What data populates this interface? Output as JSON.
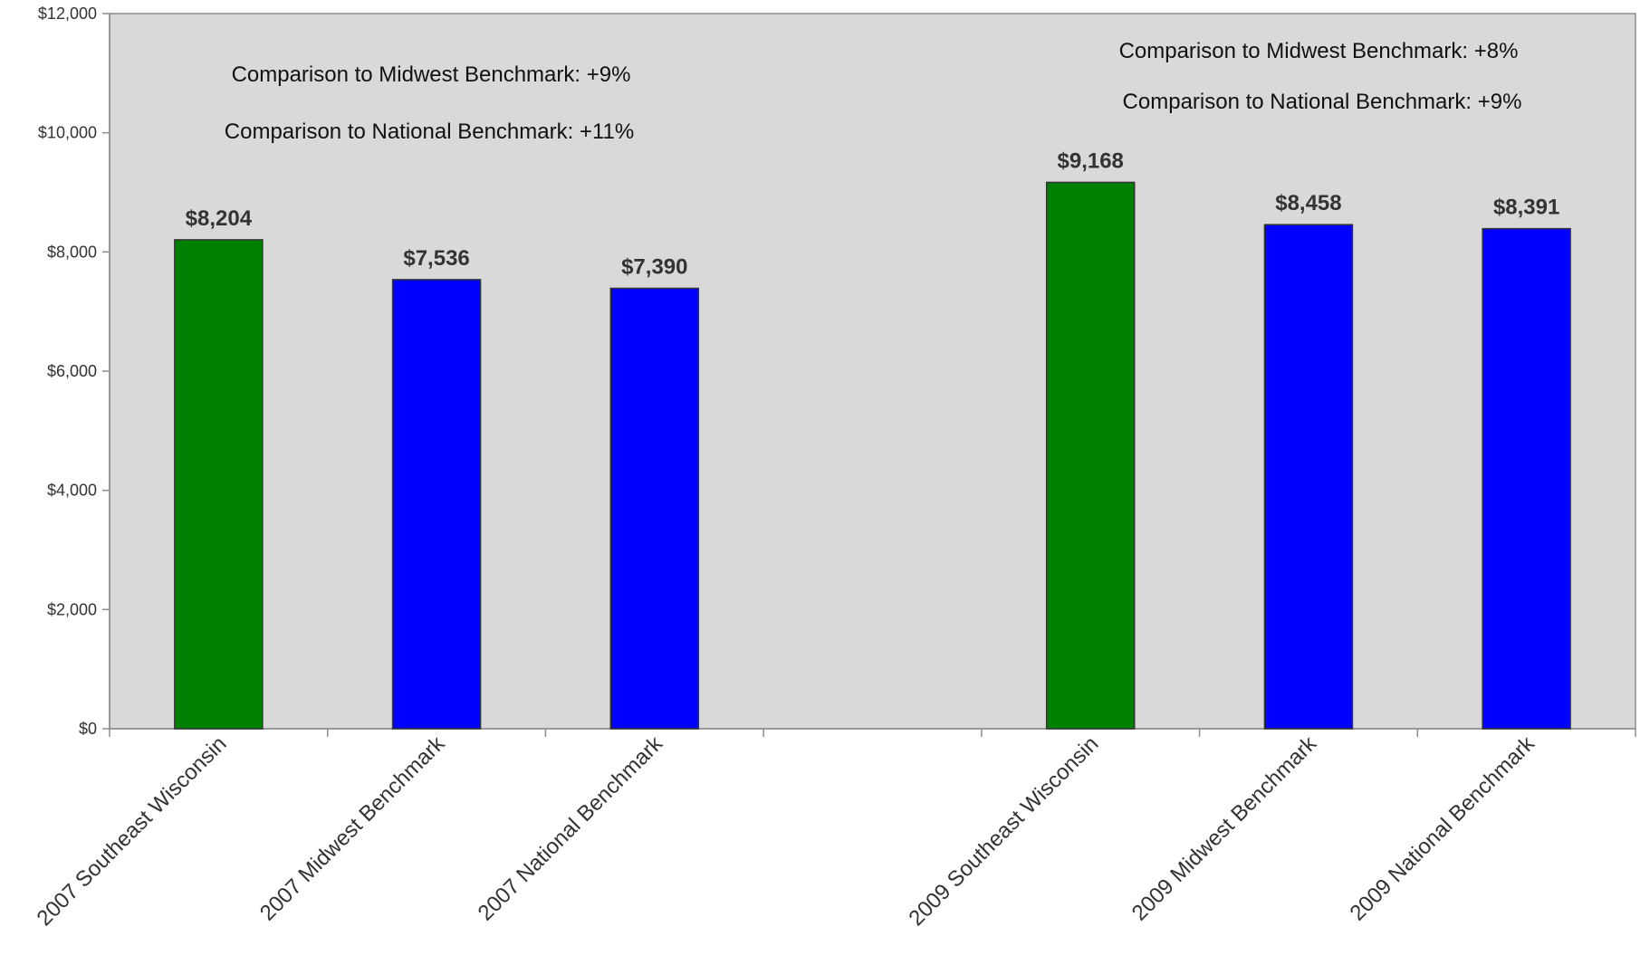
{
  "chart_data": {
    "type": "bar",
    "categories": [
      "2007 Southeast Wisconsin",
      "2007 Midwest Benchmark",
      "2007 National Benchmark",
      "",
      "2009 Southeast Wisconsin",
      "2009 Midwest Benchmark",
      "2009 National Benchmark"
    ],
    "values": [
      8204,
      7536,
      7390,
      null,
      9168,
      8458,
      8391
    ],
    "data_labels": [
      "$8,204",
      "$7,536",
      "$7,390",
      "",
      "$9,168",
      "$8,458",
      "$8,391"
    ],
    "bar_colors": [
      "#008000",
      "#0000ff",
      "#0000ff",
      "",
      "#008000",
      "#0000ff",
      "#0000ff"
    ],
    "ylim": [
      0,
      12000
    ],
    "yticks": [
      0,
      2000,
      4000,
      6000,
      8000,
      10000,
      12000
    ],
    "ytick_labels": [
      "$0",
      "$2,000",
      "$4,000",
      "$6,000",
      "$8,000",
      "$10,000",
      "$12,000"
    ],
    "title": "",
    "xlabel": "",
    "ylabel": "",
    "grid": false,
    "legend": "none",
    "plot_background": "#d9d9d9",
    "annotations": [
      {
        "group": "2007",
        "text": "Comparison to Midwest Benchmark: +9%"
      },
      {
        "group": "2007",
        "text": "Comparison to National Benchmark: +11%"
      },
      {
        "group": "2009",
        "text": "Comparison to Midwest Benchmark: +8%"
      },
      {
        "group": "2009",
        "text": "Comparison to National Benchmark: +9%"
      }
    ]
  }
}
